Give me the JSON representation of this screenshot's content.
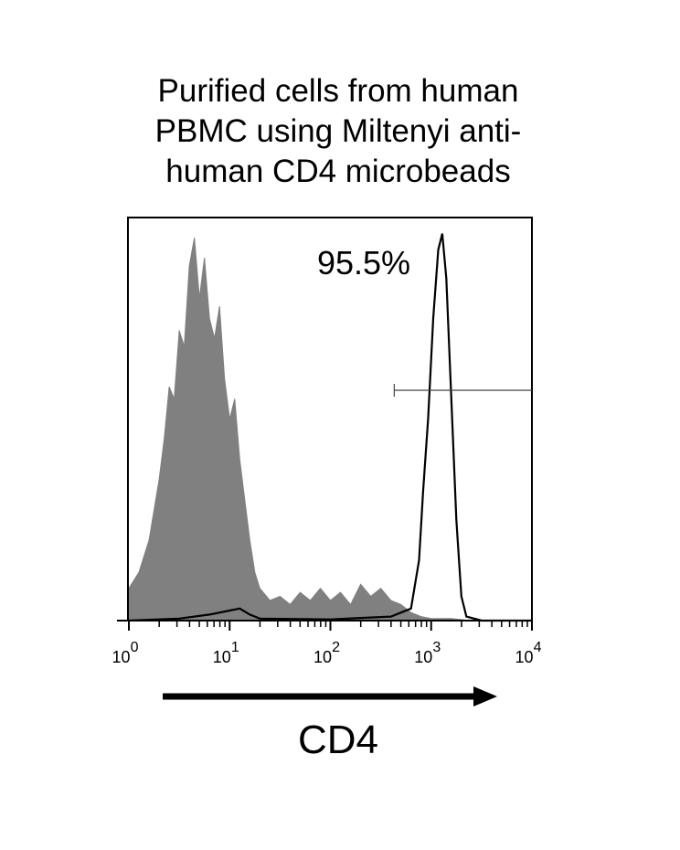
{
  "chart_data": {
    "type": "area",
    "title_lines": [
      "Purified cells from human",
      "PBMC using Miltenyi anti-",
      "human CD4 microbeads"
    ],
    "xlabel": "CD4",
    "xscale": "log",
    "xlim": [
      1,
      10000
    ],
    "ylim": [
      0,
      100
    ],
    "x_tick_labels": [
      {
        "base": "10",
        "exp": "0"
      },
      {
        "base": "10",
        "exp": "1"
      },
      {
        "base": "10",
        "exp": "2"
      },
      {
        "base": "10",
        "exp": "3"
      },
      {
        "base": "10",
        "exp": "4"
      }
    ],
    "grid": false,
    "gate": {
      "from": 430,
      "to": 10000,
      "label": "95.5%"
    },
    "series": [
      {
        "style": "filled-gray",
        "color": "#808080",
        "log10_x": [
          0.0,
          0.1,
          0.2,
          0.3,
          0.35,
          0.4,
          0.45,
          0.5,
          0.55,
          0.6,
          0.65,
          0.7,
          0.75,
          0.8,
          0.85,
          0.9,
          0.95,
          1.0,
          1.05,
          1.1,
          1.15,
          1.2,
          1.25,
          1.3,
          1.4,
          1.5,
          1.6,
          1.7,
          1.8,
          1.9,
          2.0,
          2.1,
          2.2,
          2.3,
          2.4,
          2.5,
          2.6,
          2.7,
          2.8,
          2.9,
          3.0,
          3.2,
          3.4
        ],
        "y": [
          8,
          12,
          20,
          35,
          45,
          58,
          55,
          72,
          68,
          88,
          95,
          80,
          90,
          75,
          70,
          78,
          60,
          50,
          55,
          40,
          30,
          20,
          12,
          8,
          5,
          6,
          4,
          7,
          5,
          8,
          5,
          7,
          4,
          9,
          6,
          8,
          5,
          4,
          2,
          1,
          0.5,
          0.5,
          0
        ]
      },
      {
        "style": "black-outline",
        "color": "#000000",
        "log10_x": [
          0.0,
          0.5,
          0.8,
          1.0,
          1.1,
          1.2,
          1.3,
          2.0,
          2.6,
          2.8,
          2.88,
          2.92,
          2.97,
          3.02,
          3.07,
          3.11,
          3.15,
          3.2,
          3.25,
          3.3,
          3.35,
          3.5,
          4.0
        ],
        "y": [
          0,
          0.5,
          1.5,
          2.5,
          3,
          1.5,
          0.5,
          0.3,
          1,
          3,
          15,
          32,
          50,
          75,
          92,
          96,
          85,
          55,
          25,
          6,
          1,
          0,
          0
        ]
      }
    ]
  }
}
